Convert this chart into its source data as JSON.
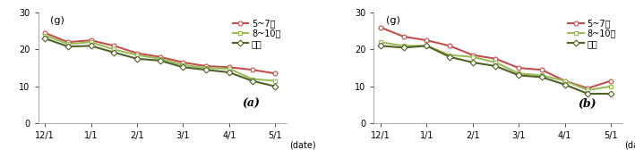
{
  "panel_a": {
    "title": "(a)",
    "series": [
      {
        "label": "5~7개",
        "color": "#c0504d",
        "marker": "o",
        "markerface": "white",
        "values": [
          24.5,
          22.0,
          22.5,
          21.0,
          19.0,
          18.0,
          16.5,
          15.5,
          15.2,
          14.5,
          13.5
        ]
      },
      {
        "label": "8~10개",
        "color": "#9bbb59",
        "marker": "s",
        "markerface": "white",
        "values": [
          23.8,
          21.5,
          22.0,
          20.0,
          18.5,
          17.5,
          15.8,
          15.0,
          14.8,
          12.0,
          11.5
        ]
      },
      {
        "label": "방임",
        "color": "#4f6228",
        "marker": "D",
        "markerface": "white",
        "values": [
          23.0,
          20.8,
          21.0,
          19.2,
          17.5,
          17.0,
          15.2,
          14.5,
          13.8,
          11.5,
          10.0
        ]
      }
    ],
    "x_positions": [
      0,
      1,
      2,
      3,
      4,
      5,
      6,
      7,
      8,
      9,
      10
    ],
    "xtick_positions": [
      0,
      2,
      4,
      6,
      8,
      10
    ],
    "xtick_labels": [
      "12/1",
      "1/1",
      "2/1",
      "3/1",
      "4/1",
      "5/1"
    ],
    "xlabel": "(date)",
    "ylabel": "(g)",
    "ylim": [
      0,
      30
    ],
    "yticks": [
      0,
      10,
      20,
      30
    ]
  },
  "panel_b": {
    "title": "(b)",
    "series": [
      {
        "label": "5~7개",
        "color": "#c0504d",
        "marker": "o",
        "markerface": "white",
        "values": [
          26.0,
          23.5,
          22.5,
          21.0,
          18.5,
          17.5,
          15.0,
          14.5,
          11.5,
          9.5,
          11.5
        ]
      },
      {
        "label": "8~10개",
        "color": "#9bbb59",
        "marker": "s",
        "markerface": "white",
        "values": [
          22.0,
          21.0,
          21.0,
          18.5,
          18.0,
          16.5,
          13.5,
          13.0,
          11.5,
          9.0,
          10.0
        ]
      },
      {
        "label": "방임",
        "color": "#4f6228",
        "marker": "D",
        "markerface": "white",
        "values": [
          21.0,
          20.5,
          21.0,
          18.0,
          16.5,
          15.5,
          13.0,
          12.5,
          10.5,
          8.0,
          8.0
        ]
      }
    ],
    "x_positions": [
      0,
      1,
      2,
      3,
      4,
      5,
      6,
      7,
      8,
      9,
      10
    ],
    "xtick_positions": [
      0,
      2,
      4,
      6,
      8,
      10
    ],
    "xtick_labels": [
      "12/1",
      "1/1",
      "2/1",
      "3/1",
      "4/1",
      "5/1"
    ],
    "xlabel": "(date)",
    "ylabel": "(g)",
    "ylim": [
      0,
      30
    ],
    "yticks": [
      0,
      10,
      20,
      30
    ]
  },
  "background_color": "#ffffff",
  "legend_fontsize": 7,
  "axis_fontsize": 7,
  "title_fontsize": 9,
  "linewidth": 1.5,
  "markersize": 3.5
}
